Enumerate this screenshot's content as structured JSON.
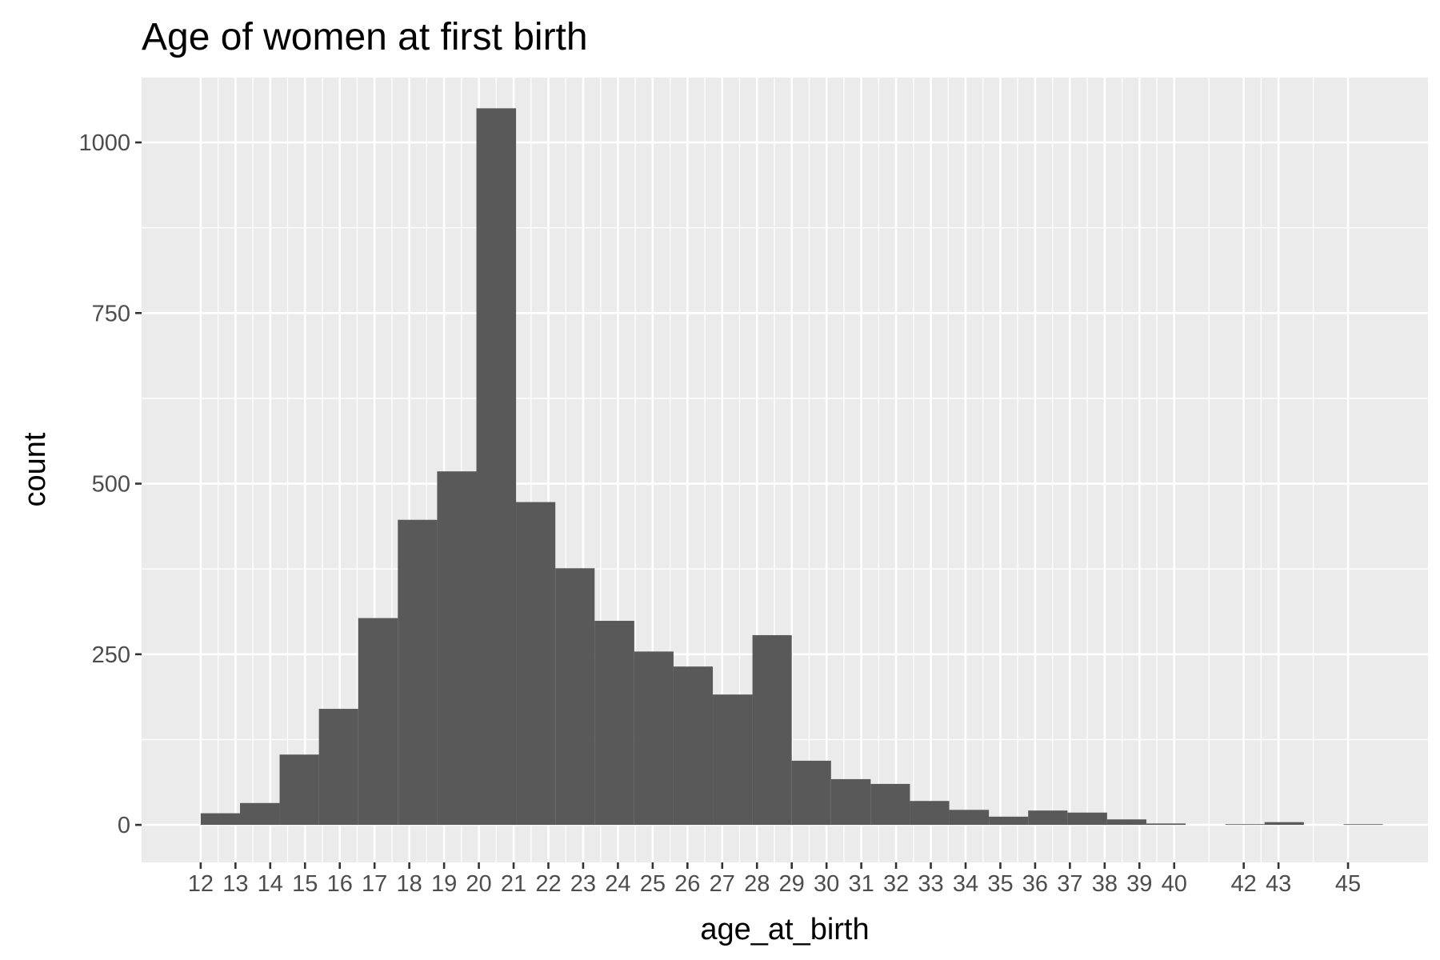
{
  "chart_data": {
    "type": "bar",
    "title": "Age of women at first birth",
    "xlabel": "age_at_birth",
    "ylabel": "count",
    "xlim": [
      10.3,
      47.3
    ],
    "ylim": [
      -55,
      1095
    ],
    "y_ticks": [
      0,
      250,
      500,
      750,
      1000
    ],
    "x_ticks": [
      12,
      13,
      14,
      15,
      16,
      17,
      18,
      19,
      20,
      21,
      22,
      23,
      24,
      25,
      26,
      27,
      28,
      29,
      30,
      31,
      32,
      33,
      34,
      35,
      36,
      37,
      38,
      39,
      40,
      42,
      43,
      45
    ],
    "grid": true,
    "bin_edges": [
      12.0,
      13.13,
      14.27,
      15.4,
      16.53,
      17.67,
      18.8,
      19.93,
      21.07,
      22.2,
      23.33,
      24.47,
      25.6,
      26.73,
      27.87,
      29.0,
      30.13,
      31.27,
      32.4,
      33.53,
      34.67,
      35.8,
      36.93,
      38.07,
      39.2,
      40.33,
      41.47,
      42.6,
      43.73,
      44.87,
      46.0
    ],
    "values": [
      17,
      32,
      103,
      170,
      303,
      447,
      518,
      1050,
      473,
      376,
      299,
      254,
      232,
      191,
      278,
      94,
      67,
      60,
      35,
      22,
      12,
      21,
      18,
      8,
      2,
      0,
      1,
      4,
      0,
      1
    ],
    "color": "#595959",
    "panel_color": "#ebebeb"
  }
}
